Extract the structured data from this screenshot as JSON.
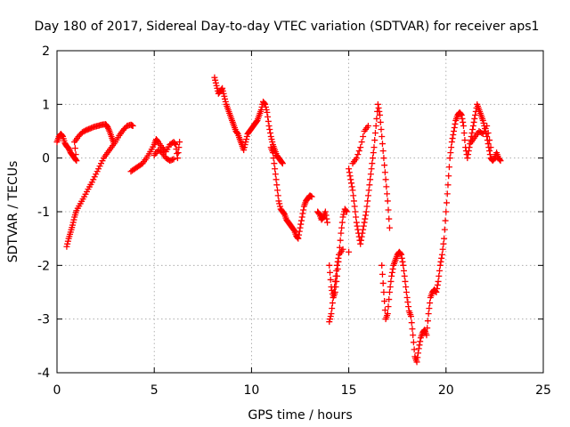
{
  "chart_data": {
    "type": "scatter",
    "title": "Day 180 of 2017, Sidereal Day-to-day VTEC variation (SDTVAR) for receiver aps1",
    "xlabel": "GPS time / hours",
    "ylabel": "SDTVAR / TECUs",
    "xlim": [
      0,
      25
    ],
    "ylim": [
      -4,
      2
    ],
    "xticks": [
      "0",
      "5",
      "10",
      "15",
      "20",
      "25"
    ],
    "yticks": [
      "-4",
      "-3",
      "-2",
      "-1",
      "0",
      "1",
      "2"
    ],
    "grid": true,
    "marker": "plus",
    "color": "#ff0000",
    "series": [
      {
        "points": [
          [
            0.0,
            0.3
          ],
          [
            0.1,
            0.4
          ],
          [
            0.2,
            0.45
          ],
          [
            0.3,
            0.4
          ],
          [
            0.4,
            0.28
          ],
          [
            0.5,
            0.22
          ],
          [
            0.6,
            0.18
          ],
          [
            0.7,
            0.1
          ],
          [
            0.8,
            0.05
          ],
          [
            0.9,
            0.0
          ],
          [
            1.0,
            -0.05
          ],
          [
            0.9,
            0.3
          ],
          [
            1.1,
            0.4
          ],
          [
            1.3,
            0.48
          ],
          [
            1.5,
            0.52
          ],
          [
            1.7,
            0.55
          ],
          [
            1.9,
            0.58
          ],
          [
            2.1,
            0.6
          ],
          [
            2.3,
            0.62
          ],
          [
            2.5,
            0.63
          ],
          [
            2.6,
            0.58
          ],
          [
            2.7,
            0.5
          ],
          [
            2.8,
            0.4
          ],
          [
            2.9,
            0.3
          ],
          [
            0.5,
            -1.65
          ],
          [
            0.6,
            -1.5
          ],
          [
            0.7,
            -1.38
          ],
          [
            0.8,
            -1.25
          ],
          [
            0.9,
            -1.1
          ],
          [
            1.0,
            -0.98
          ],
          [
            1.2,
            -0.85
          ],
          [
            1.4,
            -0.72
          ],
          [
            1.6,
            -0.58
          ],
          [
            1.8,
            -0.45
          ],
          [
            2.0,
            -0.3
          ],
          [
            2.2,
            -0.15
          ],
          [
            2.4,
            0.0
          ],
          [
            2.6,
            0.1
          ],
          [
            2.8,
            0.2
          ],
          [
            3.0,
            0.3
          ],
          [
            3.2,
            0.42
          ],
          [
            3.4,
            0.52
          ],
          [
            3.6,
            0.6
          ],
          [
            3.8,
            0.62
          ],
          [
            3.9,
            0.6
          ],
          [
            3.8,
            -0.25
          ],
          [
            4.0,
            -0.2
          ],
          [
            4.2,
            -0.15
          ],
          [
            4.4,
            -0.1
          ],
          [
            4.6,
            0.0
          ],
          [
            4.8,
            0.12
          ],
          [
            5.0,
            0.25
          ],
          [
            5.1,
            0.35
          ],
          [
            5.2,
            0.3
          ],
          [
            5.4,
            0.2
          ],
          [
            5.6,
            0.12
          ],
          [
            5.8,
            0.25
          ],
          [
            6.0,
            0.3
          ],
          [
            6.1,
            0.25
          ],
          [
            6.2,
            0.0
          ],
          [
            6.3,
            0.3
          ],
          [
            5.0,
            0.05
          ],
          [
            5.2,
            0.15
          ],
          [
            5.4,
            0.1
          ],
          [
            5.6,
            0.0
          ],
          [
            5.8,
            -0.05
          ],
          [
            6.0,
            -0.02
          ],
          [
            8.1,
            1.5
          ],
          [
            8.2,
            1.35
          ],
          [
            8.3,
            1.2
          ],
          [
            8.4,
            1.25
          ],
          [
            8.5,
            1.3
          ],
          [
            8.6,
            1.15
          ],
          [
            8.7,
            1.0
          ],
          [
            8.8,
            0.9
          ],
          [
            8.9,
            0.8
          ],
          [
            9.0,
            0.7
          ],
          [
            9.1,
            0.6
          ],
          [
            9.2,
            0.5
          ],
          [
            9.3,
            0.45
          ],
          [
            9.4,
            0.35
          ],
          [
            9.5,
            0.25
          ],
          [
            9.6,
            0.15
          ],
          [
            9.7,
            0.3
          ],
          [
            9.8,
            0.45
          ],
          [
            9.9,
            0.5
          ],
          [
            10.0,
            0.55
          ],
          [
            10.1,
            0.6
          ],
          [
            10.2,
            0.65
          ],
          [
            10.3,
            0.7
          ],
          [
            10.4,
            0.8
          ],
          [
            10.5,
            0.9
          ],
          [
            10.6,
            1.05
          ],
          [
            10.7,
            1.0
          ],
          [
            10.8,
            0.85
          ],
          [
            10.9,
            0.6
          ],
          [
            11.0,
            0.4
          ],
          [
            11.1,
            0.25
          ],
          [
            11.2,
            0.15
          ],
          [
            11.3,
            0.05
          ],
          [
            11.4,
            0.0
          ],
          [
            11.5,
            -0.05
          ],
          [
            11.6,
            -0.1
          ],
          [
            11.0,
            0.2
          ],
          [
            11.1,
            0.1
          ],
          [
            11.2,
            -0.2
          ],
          [
            11.3,
            -0.5
          ],
          [
            11.4,
            -0.8
          ],
          [
            11.5,
            -0.95
          ],
          [
            11.6,
            -1.0
          ],
          [
            11.7,
            -1.05
          ],
          [
            11.8,
            -1.15
          ],
          [
            11.9,
            -1.2
          ],
          [
            12.0,
            -1.25
          ],
          [
            12.1,
            -1.3
          ],
          [
            12.2,
            -1.35
          ],
          [
            12.3,
            -1.45
          ],
          [
            12.4,
            -1.5
          ],
          [
            12.5,
            -1.3
          ],
          [
            12.6,
            -1.1
          ],
          [
            12.7,
            -0.9
          ],
          [
            12.8,
            -0.8
          ],
          [
            12.9,
            -0.75
          ],
          [
            13.0,
            -0.7
          ],
          [
            13.1,
            -0.72
          ],
          [
            13.4,
            -1.0
          ],
          [
            13.5,
            -1.05
          ],
          [
            13.6,
            -1.15
          ],
          [
            13.7,
            -1.1
          ],
          [
            13.8,
            -1.0
          ],
          [
            13.9,
            -1.2
          ],
          [
            14.0,
            -2.0
          ],
          [
            14.1,
            -2.4
          ],
          [
            14.2,
            -2.6
          ],
          [
            14.3,
            -2.5
          ],
          [
            14.4,
            -2.2
          ],
          [
            14.5,
            -1.8
          ],
          [
            14.6,
            -1.4
          ],
          [
            14.7,
            -1.1
          ],
          [
            14.8,
            -0.95
          ],
          [
            14.9,
            -1.0
          ],
          [
            14.0,
            -3.05
          ],
          [
            14.1,
            -2.9
          ],
          [
            14.2,
            -2.6
          ],
          [
            14.3,
            -2.3
          ],
          [
            14.4,
            -2.0
          ],
          [
            14.5,
            -1.8
          ],
          [
            14.7,
            -1.7
          ],
          [
            15.0,
            -1.75
          ],
          [
            15.0,
            -0.2
          ],
          [
            15.1,
            -0.4
          ],
          [
            15.2,
            -0.6
          ],
          [
            15.3,
            -0.9
          ],
          [
            15.4,
            -1.2
          ],
          [
            15.5,
            -1.4
          ],
          [
            15.6,
            -1.6
          ],
          [
            15.7,
            -1.4
          ],
          [
            15.8,
            -1.2
          ],
          [
            15.9,
            -1.0
          ],
          [
            16.0,
            -0.7
          ],
          [
            16.1,
            -0.4
          ],
          [
            16.2,
            -0.1
          ],
          [
            16.3,
            0.2
          ],
          [
            16.4,
            0.6
          ],
          [
            16.5,
            1.0
          ],
          [
            16.6,
            0.8
          ],
          [
            16.7,
            0.4
          ],
          [
            16.8,
            0.0
          ],
          [
            16.9,
            -0.4
          ],
          [
            17.0,
            -0.8
          ],
          [
            17.1,
            -1.3
          ],
          [
            15.2,
            -0.1
          ],
          [
            15.4,
            0.0
          ],
          [
            15.6,
            0.2
          ],
          [
            15.8,
            0.5
          ],
          [
            16.0,
            0.6
          ],
          [
            16.7,
            -2.0
          ],
          [
            16.8,
            -2.5
          ],
          [
            16.9,
            -3.0
          ],
          [
            17.0,
            -2.9
          ],
          [
            17.1,
            -2.5
          ],
          [
            17.2,
            -2.2
          ],
          [
            17.3,
            -2.0
          ],
          [
            17.4,
            -1.9
          ],
          [
            17.5,
            -1.8
          ],
          [
            17.6,
            -1.75
          ],
          [
            17.7,
            -1.8
          ],
          [
            17.8,
            -2.0
          ],
          [
            17.9,
            -2.3
          ],
          [
            18.0,
            -2.6
          ],
          [
            18.1,
            -2.85
          ],
          [
            18.2,
            -2.95
          ],
          [
            18.3,
            -3.3
          ],
          [
            18.4,
            -3.7
          ],
          [
            18.5,
            -3.8
          ],
          [
            18.6,
            -3.55
          ],
          [
            18.7,
            -3.35
          ],
          [
            18.8,
            -3.25
          ],
          [
            18.9,
            -3.2
          ],
          [
            19.0,
            -3.3
          ],
          [
            19.1,
            -2.9
          ],
          [
            19.2,
            -2.6
          ],
          [
            19.3,
            -2.5
          ],
          [
            19.4,
            -2.45
          ],
          [
            19.5,
            -2.5
          ],
          [
            19.6,
            -2.3
          ],
          [
            19.7,
            -2.0
          ],
          [
            19.8,
            -1.8
          ],
          [
            19.9,
            -1.5
          ],
          [
            20.0,
            -1.0
          ],
          [
            20.1,
            -0.5
          ],
          [
            20.2,
            0.0
          ],
          [
            20.3,
            0.3
          ],
          [
            20.4,
            0.5
          ],
          [
            20.5,
            0.7
          ],
          [
            20.6,
            0.8
          ],
          [
            20.7,
            0.85
          ],
          [
            20.8,
            0.8
          ],
          [
            20.9,
            0.6
          ],
          [
            21.0,
            0.2
          ],
          [
            21.1,
            0.0
          ],
          [
            21.2,
            0.2
          ],
          [
            21.3,
            0.4
          ],
          [
            21.4,
            0.6
          ],
          [
            21.5,
            0.8
          ],
          [
            21.6,
            1.0
          ],
          [
            21.7,
            0.9
          ],
          [
            21.8,
            0.8
          ],
          [
            21.9,
            0.7
          ],
          [
            22.0,
            0.55
          ],
          [
            22.1,
            0.4
          ],
          [
            22.2,
            0.2
          ],
          [
            22.3,
            0.0
          ],
          [
            22.4,
            -0.05
          ],
          [
            22.5,
            0.0
          ],
          [
            22.6,
            0.1
          ],
          [
            22.7,
            0.0
          ],
          [
            22.8,
            -0.05
          ],
          [
            21.3,
            0.3
          ],
          [
            21.5,
            0.4
          ],
          [
            21.7,
            0.5
          ],
          [
            21.9,
            0.45
          ],
          [
            22.1,
            0.6
          ],
          [
            22.3,
            0.2
          ]
        ]
      }
    ]
  }
}
